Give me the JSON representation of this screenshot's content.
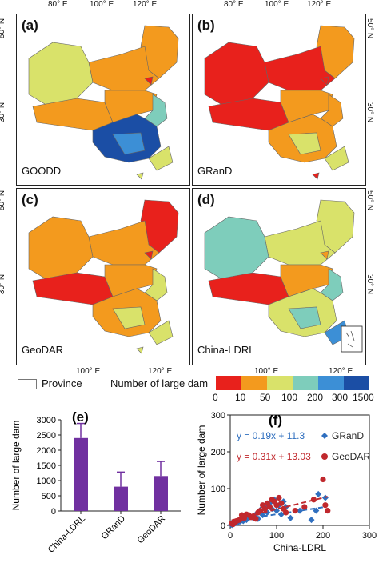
{
  "colors": {
    "bin1": "#e8211c",
    "bin2": "#f39a1e",
    "bin3": "#d9e26a",
    "bin4": "#7ecdbb",
    "bin5": "#3c8fd6",
    "bin6": "#1b4ea5",
    "bar": "#7030a0",
    "grand": "#2f6fbf",
    "geodar": "#c0282d"
  },
  "maps": {
    "top_lon_ticks": [
      "80° E",
      "100° E",
      "120° E"
    ],
    "bottom_lon_ticks": [
      "100° E",
      "120° E"
    ],
    "lat_ticks": [
      "50° N",
      "30° N"
    ],
    "panels": [
      {
        "tag": "(a)",
        "name": "GOODD"
      },
      {
        "tag": "(b)",
        "name": "GRanD"
      },
      {
        "tag": "(c)",
        "name": "GeoDAR"
      },
      {
        "tag": "(d)",
        "name": "China-LDRL"
      }
    ]
  },
  "legend": {
    "province_label": "Province",
    "colorbar_title": "Number of large dam",
    "bins": [
      "0",
      "10",
      "50",
      "100",
      "200",
      "300",
      "1500"
    ]
  },
  "chart_data": [
    {
      "type": "bar",
      "panel": "(e)",
      "categories": [
        "China-LDRL",
        "GRanD",
        "GeoDAR"
      ],
      "values": [
        2400,
        800,
        1150
      ],
      "errors": [
        480,
        480,
        480
      ],
      "ylabel": "Number of large dam",
      "ylim": [
        0,
        3000
      ],
      "yticks": [
        "0",
        "500",
        "1000",
        "1500",
        "2000",
        "2500",
        "3000"
      ]
    },
    {
      "type": "scatter",
      "panel": "(f)",
      "xlabel": "China-LDRL",
      "ylabel": "Number of large dam",
      "xlim": [
        0,
        300
      ],
      "ylim": [
        0,
        300
      ],
      "xticks": [
        "0",
        "100",
        "200",
        "300"
      ],
      "yticks": [
        "0",
        "100",
        "200",
        "300"
      ],
      "series": [
        {
          "name": "GRanD",
          "equation": "y = 0.19x + 11.3",
          "slope": 0.19,
          "intercept": 11.3,
          "points": [
            [
              2,
              2
            ],
            [
              5,
              1
            ],
            [
              8,
              4
            ],
            [
              12,
              6
            ],
            [
              18,
              9
            ],
            [
              22,
              11
            ],
            [
              28,
              12
            ],
            [
              35,
              15
            ],
            [
              40,
              20
            ],
            [
              48,
              22
            ],
            [
              55,
              30
            ],
            [
              60,
              18
            ],
            [
              65,
              42
            ],
            [
              70,
              28
            ],
            [
              75,
              52
            ],
            [
              80,
              35
            ],
            [
              85,
              60
            ],
            [
              90,
              45
            ],
            [
              95,
              70
            ],
            [
              100,
              40
            ],
            [
              105,
              55
            ],
            [
              110,
              30
            ],
            [
              115,
              65
            ],
            [
              120,
              50
            ],
            [
              130,
              20
            ],
            [
              150,
              40
            ],
            [
              175,
              15
            ],
            [
              185,
              40
            ],
            [
              190,
              85
            ],
            [
              205,
              75
            ]
          ]
        },
        {
          "name": "GeoDAR",
          "equation": "y = 0.31x + 13.03",
          "slope": 0.31,
          "intercept": 13.03,
          "points": [
            [
              3,
              5
            ],
            [
              6,
              3
            ],
            [
              10,
              8
            ],
            [
              14,
              12
            ],
            [
              20,
              15
            ],
            [
              25,
              28
            ],
            [
              30,
              20
            ],
            [
              35,
              30
            ],
            [
              40,
              28
            ],
            [
              45,
              22
            ],
            [
              50,
              25
            ],
            [
              55,
              18
            ],
            [
              60,
              35
            ],
            [
              65,
              40
            ],
            [
              70,
              55
            ],
            [
              75,
              45
            ],
            [
              80,
              60
            ],
            [
              85,
              50
            ],
            [
              90,
              70
            ],
            [
              95,
              65
            ],
            [
              100,
              55
            ],
            [
              105,
              75
            ],
            [
              110,
              60
            ],
            [
              115,
              45
            ],
            [
              120,
              35
            ],
            [
              140,
              40
            ],
            [
              160,
              50
            ],
            [
              180,
              70
            ],
            [
              200,
              125
            ],
            [
              205,
              55
            ],
            [
              210,
              40
            ]
          ]
        }
      ]
    }
  ]
}
